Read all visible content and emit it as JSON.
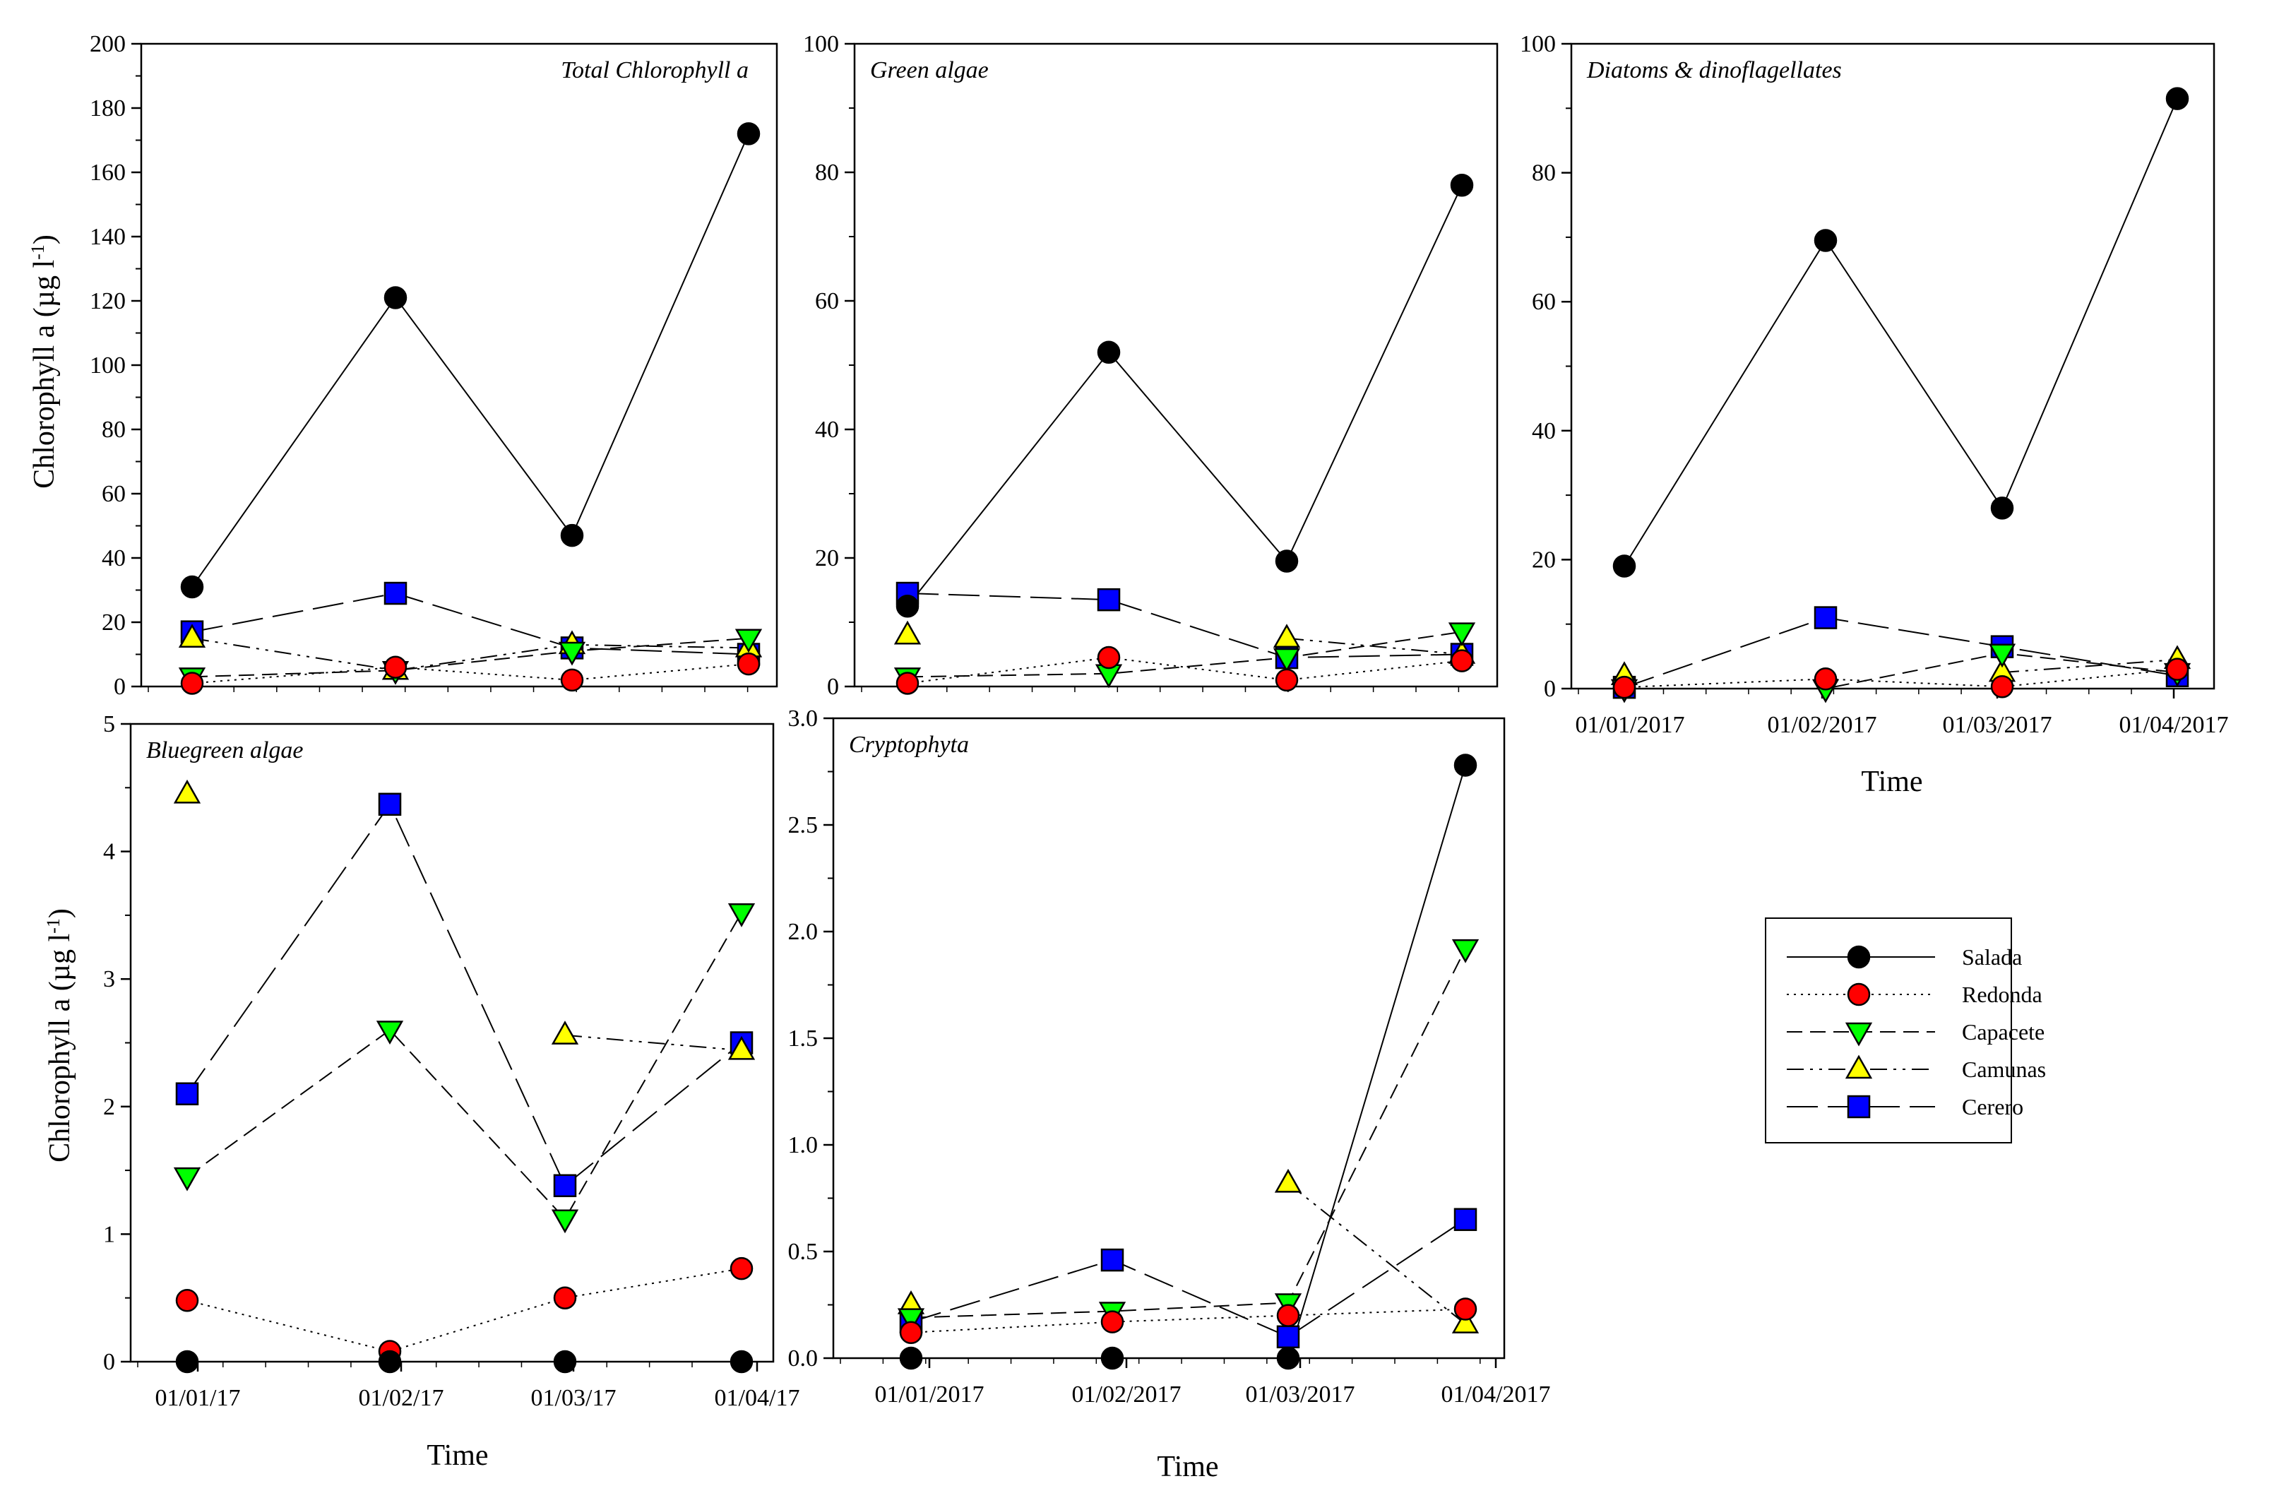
{
  "figure": {
    "ylabel_main": "Chlorophyll a (µg l",
    "ylabel_sup": "-1",
    "ylabel_close": ")",
    "xlabel": "Time"
  },
  "legend": {
    "entries": [
      "Salada",
      "Redonda",
      "Capacete",
      "Camunas",
      "Cerero"
    ]
  },
  "series_style": {
    "Salada": {
      "fill": "#000000",
      "marker": "circle",
      "dash": "none"
    },
    "Redonda": {
      "fill": "#ff0000",
      "marker": "circle",
      "dash": "3,7"
    },
    "Capacete": {
      "fill": "#00ff00",
      "marker": "triangle-down",
      "dash": "22,11"
    },
    "Camunas": {
      "fill": "#ffff00",
      "marker": "triangle-up",
      "dash": "24,9,4,9,4,9"
    },
    "Cerero": {
      "fill": "#0000ff",
      "marker": "square",
      "dash": "44,14"
    }
  },
  "chart_data": [
    {
      "type": "line",
      "title": "Total Chlorophyll  a",
      "x": [
        "01/01/2017",
        "01/02/2017",
        "01/03/2017",
        "01/04/2017"
      ],
      "ylim": [
        0,
        200
      ],
      "yticks": [
        "0",
        "20",
        "40",
        "60",
        "80",
        "100",
        "120",
        "140",
        "160",
        "180",
        "200"
      ],
      "xticks": [],
      "series": [
        {
          "name": "Salada",
          "values": [
            31,
            121,
            47,
            172
          ]
        },
        {
          "name": "Redonda",
          "values": [
            1,
            6,
            2,
            7
          ]
        },
        {
          "name": "Capacete",
          "values": [
            3,
            5,
            11,
            15
          ]
        },
        {
          "name": "Camunas",
          "values": [
            15,
            5,
            13,
            12
          ]
        },
        {
          "name": "Cerero",
          "values": [
            17,
            29,
            12,
            10
          ]
        }
      ]
    },
    {
      "type": "line",
      "title": "Green algae",
      "x": [
        "01/01/2017",
        "01/02/2017",
        "01/03/2017",
        "01/04/2017"
      ],
      "ylim": [
        0,
        100
      ],
      "yticks": [
        "0",
        "20",
        "40",
        "60",
        "80",
        "100"
      ],
      "xticks": [],
      "series": [
        {
          "name": "Salada",
          "values": [
            12.5,
            52,
            19.5,
            78
          ]
        },
        {
          "name": "Redonda",
          "values": [
            0.5,
            4.5,
            1,
            4
          ]
        },
        {
          "name": "Capacete",
          "values": [
            1.5,
            2,
            4.5,
            8.5
          ]
        },
        {
          "name": "Camunas",
          "values": [
            8,
            null,
            7.5,
            5
          ]
        },
        {
          "name": "Cerero",
          "values": [
            14.5,
            13.5,
            4.5,
            5
          ]
        }
      ]
    },
    {
      "type": "line",
      "title": "Diatoms & dinoflagellates",
      "x": [
        "01/01/2017",
        "01/02/2017",
        "01/03/2017",
        "01/04/2017"
      ],
      "ylim": [
        0,
        100
      ],
      "yticks": [
        "0",
        "20",
        "40",
        "60",
        "80",
        "100"
      ],
      "xticks": [
        "01/01/2017",
        "01/02/2017",
        "01/03/2017",
        "01/04/2017"
      ],
      "xlabel": "Time",
      "series": [
        {
          "name": "Salada",
          "values": [
            19,
            69.5,
            28,
            91.5
          ]
        },
        {
          "name": "Redonda",
          "values": [
            0.2,
            1.5,
            0.3,
            3
          ]
        },
        {
          "name": "Capacete",
          "values": [
            0,
            0,
            5.5,
            2.5
          ]
        },
        {
          "name": "Camunas",
          "values": [
            2,
            null,
            2.5,
            4.5
          ]
        },
        {
          "name": "Cerero",
          "values": [
            0.2,
            11,
            6.5,
            2
          ]
        }
      ]
    },
    {
      "type": "line",
      "title": "Bluegreen algae",
      "x": [
        "01/01/17",
        "01/02/17",
        "01/03/17",
        "01/04/17"
      ],
      "ylim": [
        0,
        5
      ],
      "yticks": [
        "0",
        "1",
        "2",
        "3",
        "4",
        "5"
      ],
      "xticks": [
        "01/01/17",
        "01/02/17",
        "01/03/17",
        "01/04/17"
      ],
      "xlabel": "Time",
      "series": [
        {
          "name": "Salada",
          "values": [
            0,
            0,
            0,
            0
          ]
        },
        {
          "name": "Redonda",
          "values": [
            0.48,
            0.08,
            0.5,
            0.73
          ]
        },
        {
          "name": "Capacete",
          "values": [
            1.45,
            2.6,
            1.12,
            3.52
          ]
        },
        {
          "name": "Camunas",
          "values": [
            4.45,
            null,
            2.56,
            2.44
          ]
        },
        {
          "name": "Cerero",
          "values": [
            2.1,
            4.37,
            1.38,
            2.5
          ]
        }
      ]
    },
    {
      "type": "line",
      "title": "Cryptophyta",
      "x": [
        "01/01/2017",
        "01/02/2017",
        "01/03/2017",
        "01/04/2017"
      ],
      "ylim": [
        0,
        3.0
      ],
      "yticks": [
        "0.0",
        "0.5",
        "1.0",
        "1.5",
        "2.0",
        "2.5",
        "3.0"
      ],
      "xticks": [
        "01/01/2017",
        "01/02/2017",
        "01/03/2017",
        "01/04/2017"
      ],
      "xlabel": "Time",
      "series": [
        {
          "name": "Salada",
          "values": [
            0,
            0,
            0,
            2.78
          ]
        },
        {
          "name": "Redonda",
          "values": [
            0.12,
            0.17,
            0.2,
            0.23
          ]
        },
        {
          "name": "Capacete",
          "values": [
            0.19,
            0.22,
            0.26,
            1.92
          ]
        },
        {
          "name": "Camunas",
          "values": [
            0.25,
            null,
            0.82,
            0.16
          ]
        },
        {
          "name": "Cerero",
          "values": [
            0.17,
            0.46,
            0.1,
            0.65
          ]
        }
      ]
    }
  ]
}
